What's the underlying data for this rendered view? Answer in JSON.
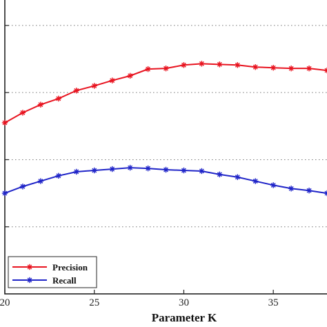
{
  "chart_data": {
    "type": "line",
    "xlabel": "Parameter K",
    "xlim": [
      20,
      38
    ],
    "ylim": [
      0,
      4.4
    ],
    "x_ticks": [
      20,
      25,
      30,
      35
    ],
    "x_tick_labels": [
      "20",
      "25",
      "30",
      "35"
    ],
    "y_gridlines": [
      1,
      2,
      3,
      4
    ],
    "grid": "horizontal dotted",
    "legend_position": "bottom-left",
    "x": [
      20,
      21,
      22,
      23,
      24,
      25,
      26,
      27,
      28,
      29,
      30,
      31,
      32,
      33,
      34,
      35,
      36,
      37,
      38
    ],
    "series": [
      {
        "name": "Precision",
        "color": "#e8131f",
        "marker": "asterisk",
        "values": [
          2.55,
          2.7,
          2.82,
          2.91,
          3.03,
          3.1,
          3.18,
          3.25,
          3.35,
          3.36,
          3.41,
          3.43,
          3.42,
          3.41,
          3.38,
          3.37,
          3.36,
          3.36,
          3.33
        ]
      },
      {
        "name": "Recall",
        "color": "#1f24c8",
        "marker": "asterisk",
        "values": [
          1.5,
          1.6,
          1.68,
          1.76,
          1.82,
          1.84,
          1.86,
          1.88,
          1.87,
          1.85,
          1.84,
          1.83,
          1.78,
          1.74,
          1.68,
          1.62,
          1.57,
          1.54,
          1.5
        ]
      }
    ]
  }
}
